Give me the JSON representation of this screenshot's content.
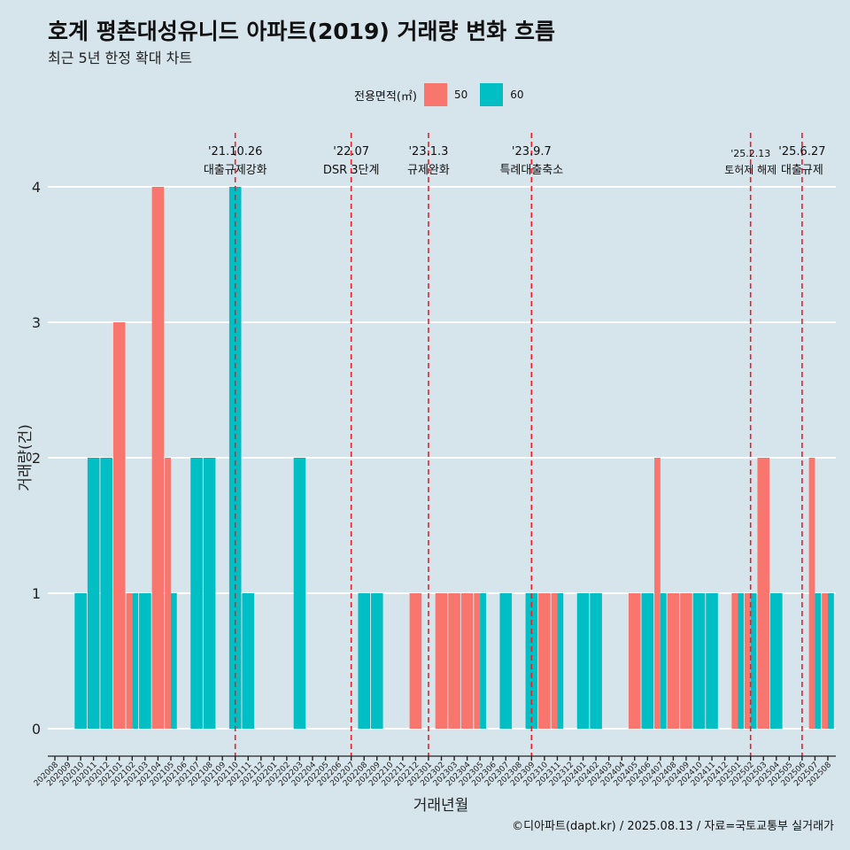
{
  "title": "호계 평촌대성유니드 아파트(2019) 거래량 변화 흐름",
  "subtitle": "최근 5년 한정 확대 차트",
  "caption": "©디아파트(dapt.kr) / 2025.08.13 / 자료=국토교통부 실거래가",
  "legend": {
    "title": "전용면적(㎡)",
    "items": [
      {
        "label": "50",
        "color": "#f8766d"
      },
      {
        "label": "60",
        "color": "#00bfc4"
      }
    ]
  },
  "chart_data": {
    "type": "bar",
    "xlabel": "거래년월",
    "ylabel": "거래량(건)",
    "ylim": [
      0,
      4
    ],
    "yticks": [
      0,
      1,
      2,
      3,
      4
    ],
    "categories": [
      "202008",
      "202009",
      "202010",
      "202011",
      "202012",
      "202101",
      "202102",
      "202103",
      "202104",
      "202105",
      "202106",
      "202107",
      "202108",
      "202109",
      "202110",
      "202111",
      "202112",
      "202201",
      "202202",
      "202203",
      "202204",
      "202205",
      "202206",
      "202207",
      "202208",
      "202209",
      "202210",
      "202211",
      "202212",
      "202301",
      "202302",
      "202303",
      "202304",
      "202305",
      "202306",
      "202307",
      "202308",
      "202309",
      "202310",
      "202311",
      "202312",
      "202401",
      "202402",
      "202403",
      "202404",
      "202405",
      "202406",
      "202407",
      "202408",
      "202409",
      "202410",
      "202411",
      "202412",
      "202501",
      "202502",
      "202503",
      "202504",
      "202505",
      "202506",
      "202507",
      "202508"
    ],
    "series": [
      {
        "name": "50",
        "color": "#f8766d",
        "values": [
          0,
          0,
          0,
          0,
          0,
          3,
          1,
          0,
          4,
          2,
          0,
          0,
          0,
          0,
          0,
          0,
          0,
          0,
          0,
          0,
          0,
          0,
          0,
          0,
          0,
          0,
          0,
          0,
          1,
          0,
          1,
          1,
          1,
          1,
          0,
          0,
          0,
          0,
          1,
          1,
          0,
          0,
          0,
          0,
          0,
          1,
          0,
          2,
          1,
          1,
          0,
          0,
          0,
          1,
          1,
          2,
          0,
          0,
          0,
          2,
          1
        ]
      },
      {
        "name": "60",
        "color": "#00bfc4",
        "values": [
          0,
          0,
          1,
          2,
          2,
          0,
          1,
          1,
          0,
          1,
          0,
          2,
          2,
          0,
          4,
          1,
          0,
          0,
          0,
          2,
          0,
          0,
          0,
          0,
          1,
          1,
          0,
          0,
          0,
          0,
          0,
          0,
          0,
          1,
          0,
          1,
          0,
          1,
          0,
          1,
          0,
          1,
          1,
          0,
          0,
          0,
          1,
          1,
          0,
          0,
          1,
          1,
          0,
          1,
          1,
          0,
          1,
          0,
          0,
          1,
          1
        ]
      }
    ],
    "annotations": [
      {
        "at": "202110",
        "date": "'21.10.26",
        "label": "대출규제강화"
      },
      {
        "at": "202207",
        "date": "'22.07",
        "label": "DSR 3단계"
      },
      {
        "at": "202301",
        "date": "'23.1.3",
        "label": "규제완화"
      },
      {
        "at": "202309",
        "date": "'23.9.7",
        "label": "특례대출축소"
      },
      {
        "at": "202502",
        "date": "'25.2.13",
        "label": "토허제 해제"
      },
      {
        "at": "202506",
        "date": "'25.6.27",
        "label": "대출규제"
      }
    ]
  }
}
